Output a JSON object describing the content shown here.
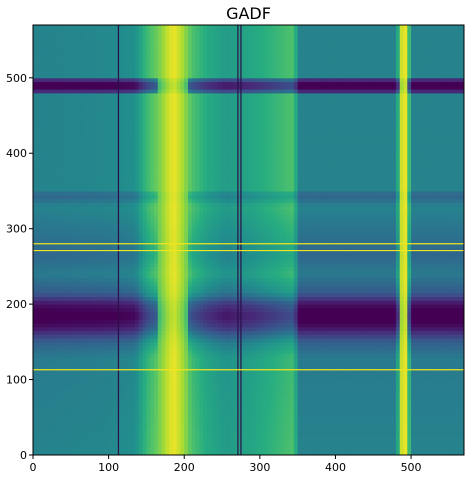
{
  "chart_data": {
    "type": "heatmap",
    "title": "GADF",
    "xlabel": "",
    "ylabel": "",
    "xlim": [
      0,
      570
    ],
    "ylim": [
      0,
      570
    ],
    "x_ticks": [
      0,
      100,
      200,
      300,
      400,
      500
    ],
    "y_ticks": [
      0,
      100,
      200,
      300,
      400,
      500
    ],
    "colormap": "viridis",
    "grid": false,
    "legend": "none",
    "colors": {
      "dark_band": "#3b0f70",
      "bright_band": "#f2e51d",
      "background": "#21918c"
    },
    "column_profile": [
      {
        "x": 0,
        "v": 0.45
      },
      {
        "x": 100,
        "v": 0.47
      },
      {
        "x": 135,
        "v": 0.5
      },
      {
        "x": 150,
        "v": 0.68
      },
      {
        "x": 165,
        "v": 0.78
      },
      {
        "x": 178,
        "v": 0.92
      },
      {
        "x": 186,
        "v": 0.98
      },
      {
        "x": 196,
        "v": 0.9
      },
      {
        "x": 210,
        "v": 0.72
      },
      {
        "x": 230,
        "v": 0.62
      },
      {
        "x": 255,
        "v": 0.55
      },
      {
        "x": 290,
        "v": 0.6
      },
      {
        "x": 345,
        "v": 0.72
      },
      {
        "x": 352,
        "v": 0.45
      },
      {
        "x": 480,
        "v": 0.45
      },
      {
        "x": 487,
        "v": 0.92
      },
      {
        "x": 491,
        "v": 1.0
      },
      {
        "x": 495,
        "v": 0.92
      },
      {
        "x": 500,
        "v": 0.45
      },
      {
        "x": 570,
        "v": 0.45
      }
    ],
    "row_profile": [
      {
        "y": 0,
        "v": 0.45
      },
      {
        "y": 130,
        "v": 0.42
      },
      {
        "y": 150,
        "v": 0.32
      },
      {
        "y": 170,
        "v": 0.08
      },
      {
        "y": 185,
        "v": 0.0
      },
      {
        "y": 200,
        "v": 0.08
      },
      {
        "y": 215,
        "v": 0.3
      },
      {
        "y": 240,
        "v": 0.42
      },
      {
        "y": 265,
        "v": 0.35
      },
      {
        "y": 300,
        "v": 0.4
      },
      {
        "y": 330,
        "v": 0.45
      },
      {
        "y": 345,
        "v": 0.33
      },
      {
        "y": 352,
        "v": 0.45
      },
      {
        "y": 478,
        "v": 0.45
      },
      {
        "y": 484,
        "v": 0.05
      },
      {
        "y": 490,
        "v": 0.0
      },
      {
        "y": 496,
        "v": 0.05
      },
      {
        "y": 502,
        "v": 0.45
      },
      {
        "y": 570,
        "v": 0.45
      }
    ],
    "vertical_lines": [
      {
        "x": 113,
        "color": "#2c0f4a"
      },
      {
        "x": 271,
        "color": "#2c0f4a"
      },
      {
        "x": 275,
        "color": "#2c0f4a"
      }
    ],
    "horizontal_lines": [
      {
        "y": 113,
        "color": "#f2e51d"
      },
      {
        "y": 271,
        "color": "#f2e51d"
      },
      {
        "y": 280,
        "color": "#f2e51d"
      }
    ]
  }
}
